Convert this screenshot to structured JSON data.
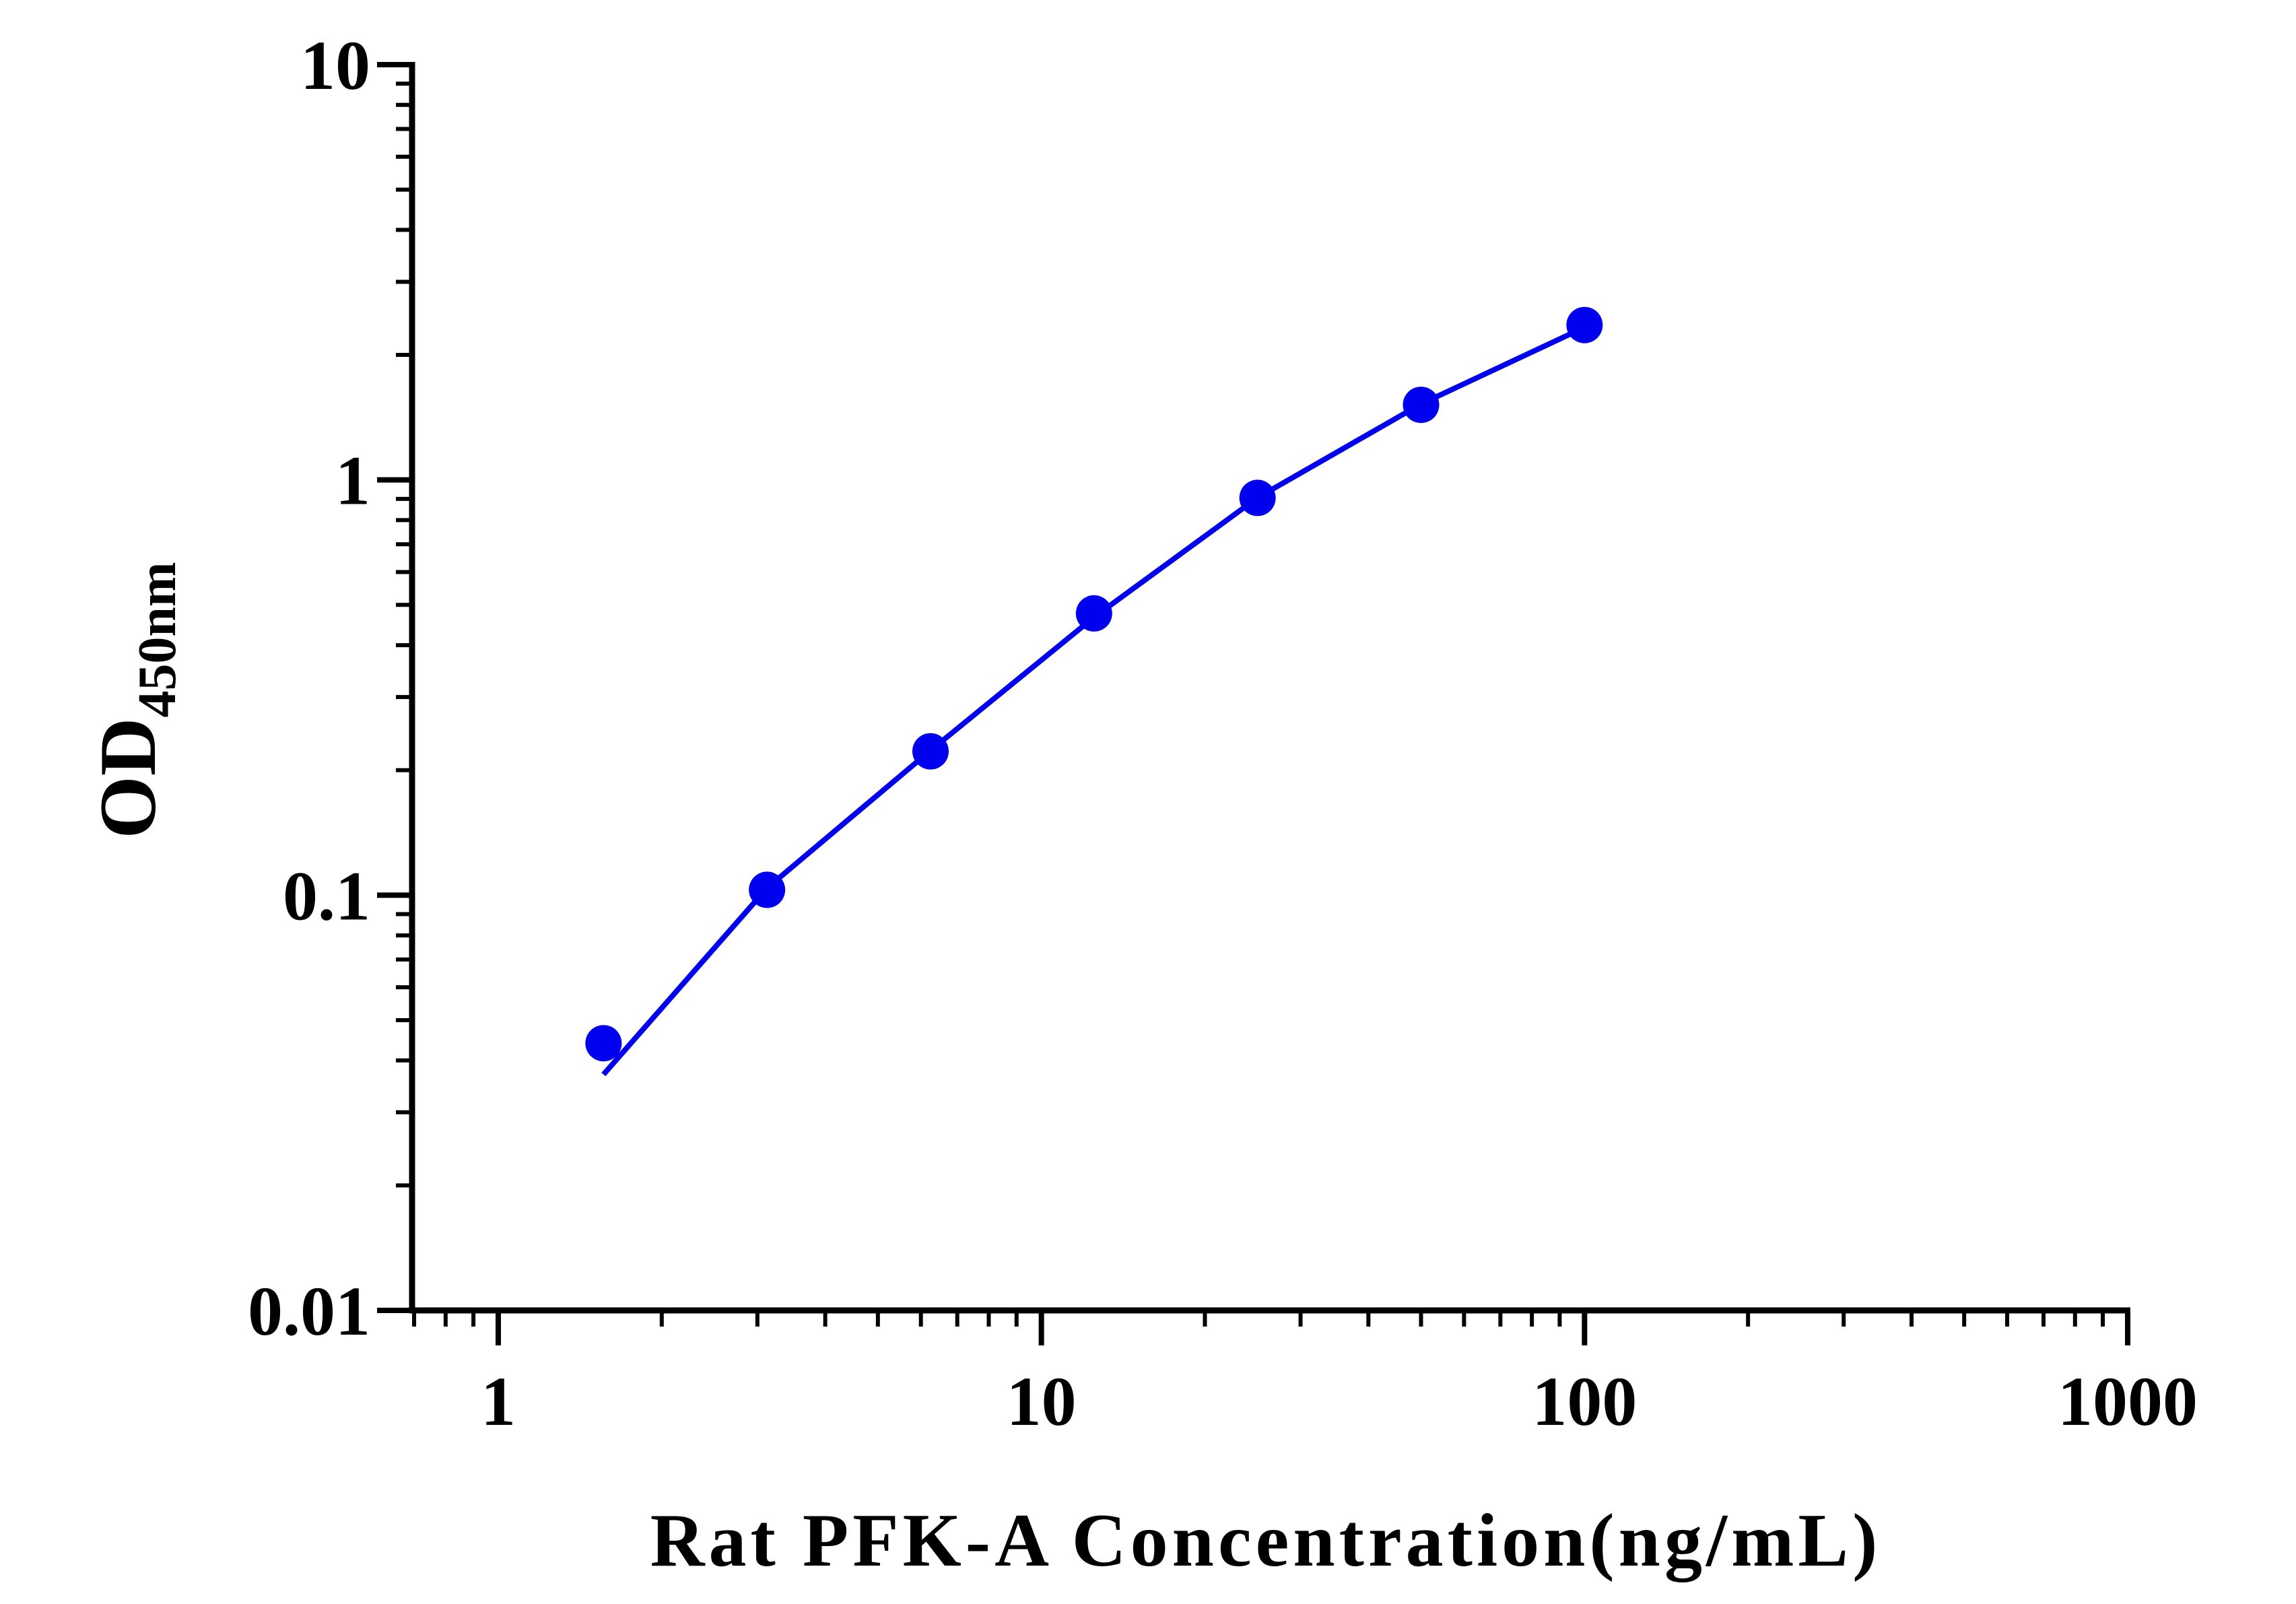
{
  "chart_data": {
    "type": "scatter",
    "xlabel": "Rat PFK-A Concentration(ng/mL)",
    "ylabel": "OD",
    "ylabel_sub": "450nm",
    "x_scale": "log",
    "y_scale": "log",
    "xlim": [
      0.7,
      1000
    ],
    "ylim": [
      0.01,
      10
    ],
    "x_ticks": [
      1,
      10,
      100,
      1000
    ],
    "x_tick_labels": [
      "1",
      "10",
      "100",
      "1000"
    ],
    "y_ticks": [
      0.01,
      0.1,
      1,
      10
    ],
    "y_tick_labels": [
      "0.01",
      "0.1",
      "1",
      "10"
    ],
    "grid": false,
    "legend": "none",
    "series": [
      {
        "color": "#0000ee",
        "x": [
          1.5625,
          3.125,
          6.25,
          12.5,
          25,
          50,
          100
        ],
        "y": [
          0.044,
          0.103,
          0.222,
          0.477,
          0.905,
          1.516,
          2.36
        ]
      }
    ],
    "fit_curve": {
      "color": "#0000ee",
      "x": [
        1.5625,
        3.125,
        6.25,
        12.5,
        25,
        50,
        100
      ],
      "y": [
        0.037,
        0.104,
        0.223,
        0.467,
        0.906,
        1.523,
        2.33
      ]
    }
  }
}
